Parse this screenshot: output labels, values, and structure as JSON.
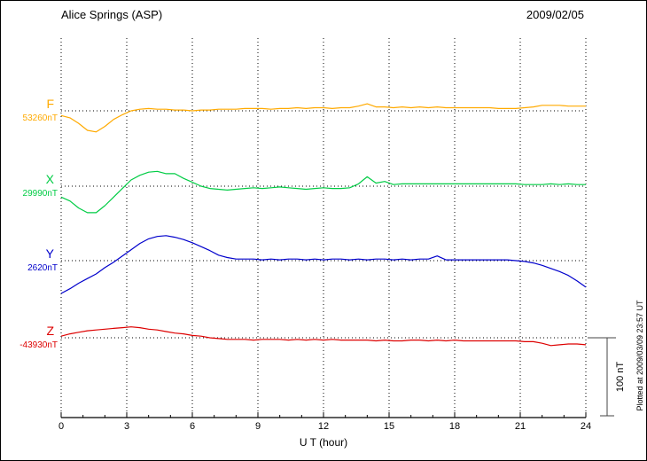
{
  "header": {
    "title": "Alice Springs (ASP)",
    "date": "2009/02/05"
  },
  "axis": {
    "xlabel": "U T (hour)",
    "tick_labels": [
      "0",
      "3",
      "6",
      "9",
      "12",
      "15",
      "18",
      "21",
      "24"
    ]
  },
  "scale_bar": {
    "label": "100 nT"
  },
  "footer_note": "Plotted at 2009/03/09 23:57 UT",
  "colors": {
    "F": "#ffaa00",
    "X": "#00cc44",
    "Y": "#0000cc",
    "Z": "#dd0000",
    "grid": "#000000",
    "scalebar": "#444444"
  },
  "chart_data": {
    "type": "line",
    "title": "Alice Springs (ASP) magnetogram 2009/02/05",
    "xlabel": "U T (hour)",
    "x_range": [
      0,
      24
    ],
    "x_tick_interval": 3,
    "grid": "dotted vertical at 3h, dotted horizontal baseline per component",
    "scale_nT": 100,
    "x_hours": [
      0,
      0.4,
      0.8,
      1.2,
      1.6,
      2,
      2.4,
      2.8,
      3.2,
      3.6,
      4,
      4.4,
      4.8,
      5.2,
      5.6,
      6,
      6.4,
      6.8,
      7.2,
      7.6,
      8,
      8.4,
      8.8,
      9.2,
      9.6,
      10,
      10.4,
      10.8,
      11.2,
      11.6,
      12,
      12.4,
      12.8,
      13.2,
      13.6,
      14,
      14.4,
      14.8,
      15.2,
      15.6,
      16,
      16.4,
      16.8,
      17.2,
      17.6,
      18,
      18.4,
      18.8,
      19.2,
      19.6,
      20,
      20.4,
      20.8,
      21.2,
      21.6,
      22,
      22.4,
      22.8,
      23.2,
      23.6,
      24
    ],
    "series": [
      {
        "name": "F",
        "baseline_label": "53260nT",
        "baseline_nT": 53260,
        "color": "#ffaa00",
        "offsets_nT": [
          -6,
          -9,
          -16,
          -25,
          -27,
          -20,
          -11,
          -5,
          0,
          2,
          3,
          2,
          2,
          1,
          1,
          0,
          1,
          1,
          2,
          2,
          2,
          3,
          3,
          3,
          2,
          3,
          3,
          4,
          3,
          4,
          4,
          3,
          4,
          4,
          6,
          9,
          5,
          5,
          4,
          5,
          4,
          5,
          4,
          5,
          4,
          4,
          4,
          4,
          4,
          4,
          3,
          3,
          3,
          4,
          5,
          7,
          7,
          7,
          6,
          6,
          6
        ]
      },
      {
        "name": "X",
        "baseline_label": "29990nT",
        "baseline_nT": 29990,
        "color": "#00cc44",
        "offsets_nT": [
          -14,
          -19,
          -28,
          -34,
          -34,
          -25,
          -14,
          -3,
          8,
          14,
          18,
          19,
          16,
          16,
          10,
          5,
          0,
          -3,
          -4,
          -5,
          -4,
          -3,
          -2,
          -3,
          -2,
          -1,
          -2,
          -3,
          -4,
          -3,
          -2,
          -3,
          -3,
          -2,
          3,
          12,
          4,
          6,
          2,
          3,
          3,
          3,
          3,
          3,
          3,
          3,
          3,
          3,
          3,
          3,
          3,
          3,
          3,
          2,
          2,
          2,
          3,
          2,
          3,
          2,
          2
        ]
      },
      {
        "name": "Y",
        "baseline_label": "2620nT",
        "baseline_nT": 2620,
        "color": "#0000cc",
        "offsets_nT": [
          -42,
          -36,
          -29,
          -23,
          -17,
          -9,
          -2,
          6,
          14,
          22,
          28,
          31,
          32,
          30,
          27,
          23,
          18,
          13,
          7,
          4,
          2,
          2,
          2,
          1,
          2,
          1,
          2,
          2,
          1,
          2,
          1,
          2,
          2,
          1,
          2,
          1,
          2,
          2,
          1,
          2,
          1,
          2,
          2,
          6,
          1,
          1,
          1,
          1,
          1,
          1,
          1,
          1,
          0,
          -1,
          -3,
          -6,
          -10,
          -14,
          -19,
          -26,
          -34
        ]
      },
      {
        "name": "Z",
        "baseline_label": "-43930nT",
        "baseline_nT": -43930,
        "color": "#dd0000",
        "offsets_nT": [
          2,
          5,
          7,
          9,
          10,
          11,
          12,
          13,
          14,
          13,
          11,
          10,
          8,
          6,
          5,
          3,
          2,
          0,
          -1,
          -2,
          -2,
          -2,
          -3,
          -2,
          -2,
          -2,
          -3,
          -2,
          -3,
          -2,
          -3,
          -2,
          -3,
          -3,
          -3,
          -3,
          -4,
          -3,
          -4,
          -4,
          -3,
          -3,
          -4,
          -3,
          -4,
          -3,
          -4,
          -4,
          -4,
          -4,
          -4,
          -4,
          -4,
          -5,
          -5,
          -7,
          -10,
          -9,
          -8,
          -8,
          -9
        ]
      }
    ]
  }
}
